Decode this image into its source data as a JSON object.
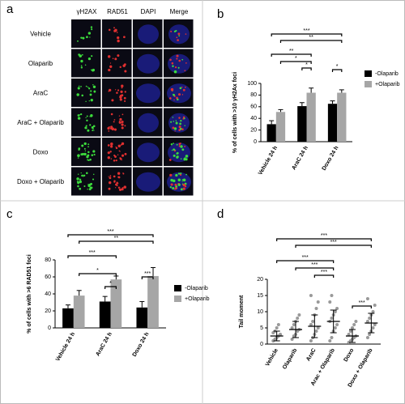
{
  "panel_a": {
    "panel": "a",
    "columns": [
      "γH2AX",
      "RAD51",
      "DAPI",
      "Merge"
    ],
    "rows": [
      "Vehicle",
      "Olaparib",
      "AraC",
      "AraC + Olaparib",
      "Doxo",
      "Doxo + Olaparib"
    ]
  },
  "chart_data": [
    {
      "type": "bar",
      "panel": "b",
      "y_label": "% of cells with >10 γH2Ax foci",
      "categories": [
        "Vehicle 24 h",
        "AraC 24 h",
        "Doxo 24 h"
      ],
      "series": [
        {
          "name": "-Olaparib",
          "color": "#000000",
          "values": [
            30,
            61,
            65
          ],
          "errors": [
            6,
            6,
            5
          ]
        },
        {
          "name": "+Olaparib",
          "color": "#a6a6a6",
          "values": [
            51,
            84,
            84
          ],
          "errors": [
            4,
            8,
            5
          ]
        }
      ],
      "ylim": [
        0,
        100
      ],
      "yticks": [
        0,
        20,
        40,
        60,
        80,
        100
      ],
      "annotations": [
        "***",
        "**",
        "**",
        "*",
        "*",
        "*"
      ]
    },
    {
      "type": "bar",
      "panel": "c",
      "y_label": "% of cells with >6 RAD51 foci",
      "categories": [
        "Vehicle 24 h",
        "AraC 24 h",
        "Doxo 24 h"
      ],
      "series": [
        {
          "name": "-Olaparib",
          "color": "#000000",
          "values": [
            23,
            31,
            24
          ],
          "errors": [
            4,
            6,
            7
          ]
        },
        {
          "name": "+Olaparib",
          "color": "#a6a6a6",
          "values": [
            38,
            57,
            61
          ],
          "errors": [
            6,
            4,
            10
          ]
        }
      ],
      "ylim": [
        0,
        80
      ],
      "yticks": [
        0,
        20,
        40,
        60,
        80
      ],
      "annotations": [
        "***",
        "**",
        "***",
        "*",
        "*",
        "***"
      ]
    },
    {
      "type": "strip",
      "panel": "d",
      "y_label": "Tail moment",
      "categories": [
        "Vehicle",
        "Olaparib",
        "AraC",
        "Arac + Olaparib",
        "Doxo",
        "Doxo + Olaparib"
      ],
      "means": [
        2.5,
        4.5,
        5.5,
        7,
        2.5,
        6.5
      ],
      "errors": [
        1.5,
        2.5,
        3.5,
        3.5,
        2,
        3
      ],
      "points": [
        [
          1,
          1.5,
          2,
          2.5,
          3,
          3.5,
          4,
          5,
          6
        ],
        [
          1.5,
          2.5,
          3,
          4,
          4.5,
          5,
          6,
          7,
          8,
          9
        ],
        [
          1,
          2,
          3,
          4,
          5,
          6,
          7,
          9,
          11,
          13,
          15
        ],
        [
          1,
          2,
          4,
          5,
          6,
          7,
          8,
          9,
          10,
          11,
          13,
          15
        ],
        [
          0.5,
          1,
          1.5,
          2,
          2.5,
          3,
          4,
          5,
          6,
          7
        ],
        [
          2,
          3,
          4,
          5,
          6,
          7,
          8,
          9,
          10,
          12,
          14
        ]
      ],
      "point_color": "#999999",
      "ylim": [
        0,
        20
      ],
      "yticks": [
        0,
        5,
        10,
        15,
        20
      ],
      "annotations": [
        "***",
        "***",
        "***",
        "***",
        "***",
        "***"
      ]
    }
  ]
}
